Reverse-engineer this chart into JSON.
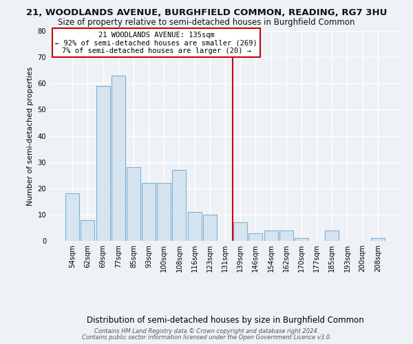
{
  "title": "21, WOODLANDS AVENUE, BURGHFIELD COMMON, READING, RG7 3HU",
  "subtitle": "Size of property relative to semi-detached houses in Burghfield Common",
  "xlabel": "Distribution of semi-detached houses by size in Burghfield Common",
  "ylabel": "Number of semi-detached properties",
  "bar_color": "#d6e4f0",
  "bar_edge_color": "#7aafd4",
  "categories": [
    "54sqm",
    "62sqm",
    "69sqm",
    "77sqm",
    "85sqm",
    "93sqm",
    "100sqm",
    "108sqm",
    "116sqm",
    "123sqm",
    "131sqm",
    "139sqm",
    "146sqm",
    "154sqm",
    "162sqm",
    "170sqm",
    "177sqm",
    "185sqm",
    "193sqm",
    "200sqm",
    "208sqm"
  ],
  "values": [
    18,
    8,
    59,
    63,
    28,
    22,
    22,
    27,
    11,
    10,
    0,
    7,
    3,
    4,
    4,
    1,
    0,
    4,
    0,
    0,
    1
  ],
  "ylim": [
    0,
    80
  ],
  "yticks": [
    0,
    10,
    20,
    30,
    40,
    50,
    60,
    70,
    80
  ],
  "vline_x": 10.5,
  "vline_color": "#cc0000",
  "annotation_title": "21 WOODLANDS AVENUE: 135sqm",
  "annotation_line1": "← 92% of semi-detached houses are smaller (269)",
  "annotation_line2": "7% of semi-detached houses are larger (20) →",
  "annotation_box_color": "#ffffff",
  "annotation_box_edge": "#cc0000",
  "footer1": "Contains HM Land Registry data © Crown copyright and database right 2024.",
  "footer2": "Contains public sector information licensed under the Open Government Licence v3.0.",
  "background_color": "#eef2f7",
  "grid_color": "#ffffff"
}
